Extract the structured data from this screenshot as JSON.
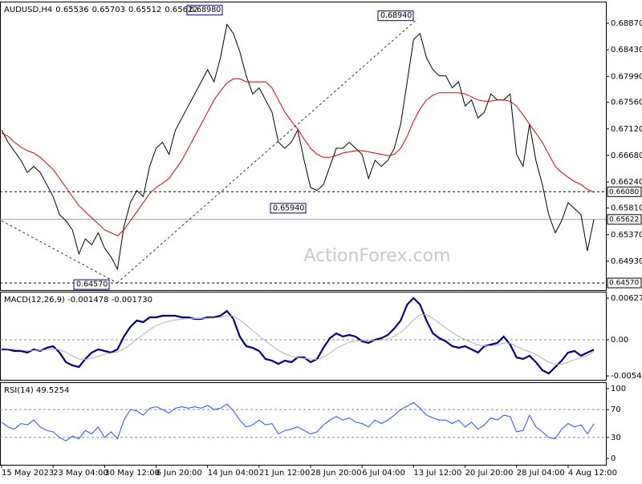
{
  "chart_data": [
    {
      "type": "line",
      "title": "AUDUSD,H4",
      "header_values": [
        "0.65536",
        "0.65703",
        "0.65512",
        "0.65622"
      ],
      "watermark": "ActionForex.com",
      "categories": [
        "15 May 2023",
        null,
        null,
        null,
        null,
        null,
        null,
        null,
        "23 May 04:00",
        null,
        null,
        null,
        null,
        null,
        null,
        null,
        "30 May 12:00",
        null,
        null,
        null,
        null,
        null,
        null,
        null,
        "6 Jun 20:00",
        null,
        null,
        null,
        null,
        null,
        null,
        null,
        "14 Jun 04:00",
        null,
        null,
        null,
        null,
        null,
        null,
        null,
        "21 Jun 12:00",
        null,
        null,
        null,
        null,
        null,
        null,
        null,
        "28 Jun 20:00",
        null,
        null,
        null,
        null,
        null,
        null,
        null,
        "6 Jul 04:00",
        null,
        null,
        null,
        null,
        null,
        null,
        null,
        "13 Jul 12:00",
        null,
        null,
        null,
        null,
        null,
        null,
        null,
        "20 Jul 20:00",
        null,
        null,
        null,
        null,
        null,
        null,
        null,
        "28 Jul 04:00",
        null,
        null,
        null,
        null,
        null,
        null,
        null,
        "4 Aug 12:00",
        null,
        null,
        null,
        null
      ],
      "series": [
        {
          "color": "#000000",
          "values": [
            0.671,
            0.669,
            0.6675,
            0.666,
            0.664,
            0.665,
            0.664,
            0.662,
            0.66,
            0.657,
            0.656,
            0.6545,
            0.6505,
            0.653,
            0.652,
            0.654,
            0.6515,
            0.65,
            0.648,
            0.655,
            0.659,
            0.661,
            0.66,
            0.665,
            0.668,
            0.669,
            0.667,
            0.671,
            0.673,
            0.675,
            0.677,
            0.679,
            0.681,
            0.679,
            0.683,
            0.6885,
            0.687,
            0.684,
            0.68,
            0.677,
            0.678,
            0.676,
            0.674,
            0.669,
            0.668,
            0.669,
            0.671,
            0.666,
            0.6615,
            0.661,
            0.662,
            0.665,
            0.668,
            0.668,
            0.669,
            0.668,
            0.667,
            0.663,
            0.666,
            0.665,
            0.666,
            0.668,
            0.672,
            0.679,
            0.686,
            0.687,
            0.683,
            0.681,
            0.68,
            0.68,
            0.678,
            0.679,
            0.675,
            0.676,
            0.673,
            0.674,
            0.677,
            0.676,
            0.676,
            0.677,
            0.667,
            0.665,
            0.672,
            0.666,
            0.662,
            0.657,
            0.654,
            0.656,
            0.659,
            0.658,
            0.657,
            0.651,
            0.6562
          ]
        },
        {
          "color": "#dd0000",
          "values": [
            0.6705,
            0.67,
            0.669,
            0.6682,
            0.6676,
            0.6672,
            0.6665,
            0.6655,
            0.6645,
            0.663,
            0.6615,
            0.66,
            0.6585,
            0.6575,
            0.6565,
            0.6555,
            0.6545,
            0.654,
            0.6535,
            0.6545,
            0.656,
            0.6575,
            0.659,
            0.6605,
            0.6615,
            0.6622,
            0.663,
            0.6645,
            0.666,
            0.668,
            0.67,
            0.672,
            0.674,
            0.676,
            0.6775,
            0.6788,
            0.6795,
            0.6795,
            0.679,
            0.679,
            0.679,
            0.679,
            0.678,
            0.676,
            0.674,
            0.6725,
            0.6712,
            0.6695,
            0.668,
            0.667,
            0.6665,
            0.6665,
            0.6668,
            0.6672,
            0.6674,
            0.6676,
            0.6676,
            0.6674,
            0.6672,
            0.667,
            0.6668,
            0.667,
            0.668,
            0.67,
            0.6725,
            0.6745,
            0.676,
            0.6768,
            0.6772,
            0.6772,
            0.6772,
            0.6772,
            0.677,
            0.6765,
            0.676,
            0.6758,
            0.6758,
            0.676,
            0.676,
            0.6758,
            0.675,
            0.6735,
            0.672,
            0.6705,
            0.669,
            0.667,
            0.665,
            0.664,
            0.6632,
            0.6625,
            0.662,
            0.6612,
            0.6607
          ]
        }
      ],
      "ylim": [
        0.64452,
        0.69228
      ],
      "yticks": [
        {
          "value": 0.6887,
          "label": "0.68870"
        },
        {
          "value": 0.6843,
          "label": "0.68430"
        },
        {
          "value": 0.6799,
          "label": "0.67990"
        },
        {
          "value": 0.6756,
          "label": "0.67560"
        },
        {
          "value": 0.6712,
          "label": "0.67120"
        },
        {
          "value": 0.6668,
          "label": "0.66680"
        },
        {
          "value": 0.6624,
          "label": "0.66240"
        },
        {
          "value": 0.6581,
          "label": "0.65810"
        },
        {
          "value": 0.6537,
          "label": "0.65370"
        },
        {
          "value": 0.6493,
          "label": "0.64930"
        }
      ],
      "levels": [
        {
          "value": 0.6608,
          "label": "0.66080",
          "dashed": true
        },
        {
          "value": 0.65622,
          "label": "0.65622",
          "dashed": false
        },
        {
          "value": 0.6457,
          "label": "0.64570",
          "dashed": true
        }
      ],
      "annotations": [
        {
          "value": 0.6898,
          "label": "0.68980"
        },
        {
          "value": 0.6894,
          "label": "0.68940"
        },
        {
          "value": 0.6594,
          "label": "0.65940"
        },
        {
          "value": 0.6457,
          "label": "0.64570"
        }
      ],
      "trendlines": [
        [
          0.656,
          0.6457
        ],
        [
          0.6457,
          0.6894
        ]
      ]
    },
    {
      "type": "line",
      "title": "MACD(12,26,9) -0.001478 -0.001730",
      "series": [
        {
          "color": "#00007f",
          "values": [
            -0.00145,
            -0.00145,
            -0.00169,
            -0.00169,
            -0.00193,
            -0.00145,
            -0.00169,
            -0.00121,
            -0.00097,
            -0.00193,
            -0.00338,
            -0.00387,
            -0.00411,
            -0.0029,
            -0.00193,
            -0.00145,
            -0.00169,
            -0.00193,
            -0.00145,
            0.00048,
            0.00193,
            0.0029,
            0.00266,
            0.00338,
            0.00338,
            0.00363,
            0.00363,
            0.00363,
            0.00338,
            0.00338,
            0.00314,
            0.00314,
            0.00338,
            0.00338,
            0.00363,
            0.00435,
            0.00314,
            0.00048,
            -0.00097,
            -0.00121,
            -0.00169,
            -0.0029,
            -0.00314,
            -0.00363,
            -0.00314,
            -0.00338,
            -0.00266,
            -0.00266,
            -0.00338,
            -0.0029,
            -0.00121,
            0.00024,
            0.00097,
            0.00048,
            0.00072,
            0.00048,
            -0.00024,
            -0.00048,
            0,
            0.00024,
            0.00072,
            0.00169,
            0.0029,
            0.00532,
            0.00628,
            0.00532,
            0.0029,
            0.00097,
            0.00024,
            -0.00024,
            -0.00097,
            -0.00121,
            -0.00097,
            -0.00145,
            -0.00193,
            -0.00097,
            -0.00072,
            -0.00048,
            0.00048,
            -0.00072,
            -0.00266,
            -0.0029,
            -0.00242,
            -0.00338,
            -0.00459,
            -0.00508,
            -0.00411,
            -0.00314,
            -0.00193,
            -0.00169,
            -0.00242,
            -0.00193,
            -0.00148
          ]
        },
        {
          "color": "#b0b0b0",
          "values": [
            -0.0013,
            -0.00135,
            -0.00145,
            -0.00155,
            -0.00165,
            -0.0016,
            -0.0016,
            -0.0015,
            -0.00135,
            -0.0015,
            -0.0019,
            -0.0024,
            -0.0029,
            -0.003,
            -0.0028,
            -0.0025,
            -0.0022,
            -0.002,
            -0.00185,
            -0.0014,
            -0.0007,
            0.0001,
            0.0008,
            0.0015,
            0.0021,
            0.0025,
            0.0028,
            0.003,
            0.0031,
            0.0032,
            0.0032,
            0.0032,
            0.00325,
            0.0033,
            0.0034,
            0.0036,
            0.0036,
            0.003,
            0.0022,
            0.0014,
            0.0006,
            -0.0002,
            -0.0009,
            -0.0016,
            -0.0021,
            -0.0025,
            -0.0027,
            -0.0028,
            -0.0029,
            -0.003,
            -0.0026,
            -0.002,
            -0.0013,
            -0.0008,
            -0.0004,
            -0.0002,
            -0.0001,
            -0.00015,
            -0.0001,
            -5e-05,
            0.0001,
            0.0005,
            0.0011,
            0.002,
            0.003,
            0.0038,
            0.0038,
            0.0032,
            0.0025,
            0.0018,
            0.0011,
            0.0005,
            0,
            -0.0004,
            -0.0008,
            -0.0009,
            -0.0009,
            -0.0008,
            -0.0005,
            -0.0005,
            -0.001,
            -0.0015,
            -0.0018,
            -0.0022,
            -0.0028,
            -0.0034,
            -0.0037,
            -0.0037,
            -0.0034,
            -0.003,
            -0.0027,
            -0.0024,
            -0.00173
          ]
        }
      ],
      "ylim": [
        -0.00604,
        0.00725
      ],
      "yticks": [
        0.006275,
        {
          "value": 0,
          "label": "0.00"
        },
        -0.005446
      ],
      "reference_lines": [
        0
      ]
    },
    {
      "type": "line",
      "title": "RSI(14) 49.5254",
      "series": [
        {
          "color": "#1e50ff",
          "values": [
            52,
            45,
            42,
            50,
            48,
            55,
            45,
            40,
            38,
            30,
            25,
            32,
            28,
            40,
            35,
            45,
            30,
            38,
            28,
            55,
            70,
            68,
            62,
            72,
            74,
            70,
            65,
            72,
            74,
            72,
            74,
            72,
            76,
            70,
            72,
            78,
            68,
            55,
            45,
            48,
            55,
            48,
            50,
            35,
            40,
            42,
            45,
            40,
            35,
            38,
            48,
            55,
            60,
            55,
            58,
            52,
            50,
            45,
            55,
            50,
            55,
            62,
            70,
            75,
            80,
            72,
            62,
            58,
            55,
            55,
            50,
            55,
            45,
            52,
            42,
            48,
            58,
            55,
            62,
            60,
            38,
            40,
            62,
            45,
            38,
            30,
            28,
            42,
            50,
            45,
            48,
            35,
            49.5
          ]
        }
      ],
      "ylim": [
        -9.2,
        109.2
      ],
      "yticks": [
        100,
        70,
        30,
        0
      ],
      "reference_lines": [
        70,
        30
      ]
    }
  ]
}
